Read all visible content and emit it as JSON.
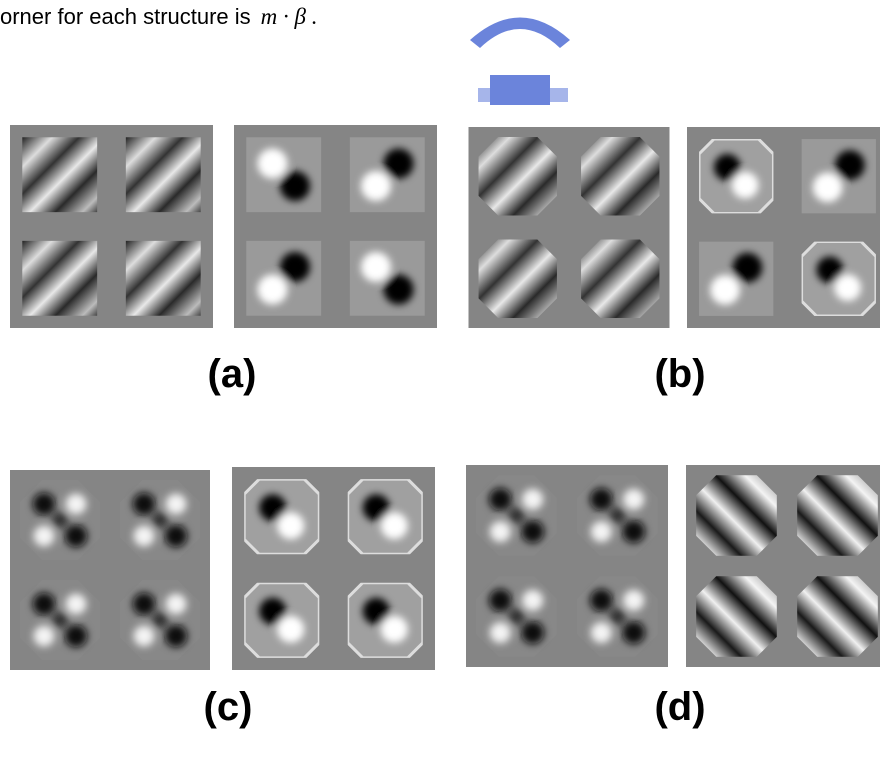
{
  "caption_line": {
    "text": "orner for each structure is",
    "math": "m · β ."
  },
  "panels": [
    {
      "label": "(a)"
    },
    {
      "label": "(b)"
    },
    {
      "label": "(c)"
    },
    {
      "label": "(d)"
    }
  ]
}
